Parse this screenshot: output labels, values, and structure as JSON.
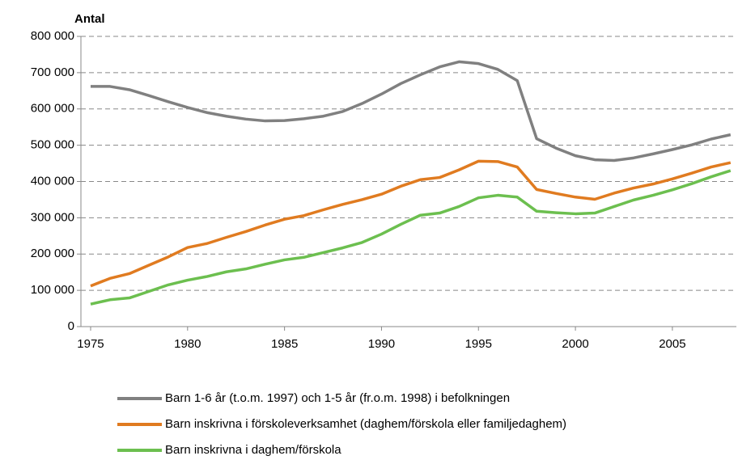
{
  "chart_data": {
    "type": "line",
    "y_label": "Antal",
    "x": [
      1975,
      1976,
      1977,
      1978,
      1979,
      1980,
      1981,
      1982,
      1983,
      1984,
      1985,
      1986,
      1987,
      1988,
      1989,
      1990,
      1991,
      1992,
      1993,
      1994,
      1995,
      1996,
      1997,
      1998,
      1999,
      2000,
      2001,
      2002,
      2003,
      2004,
      2005,
      2006,
      2007,
      2008
    ],
    "series": [
      {
        "name": "Barn 1-6 år (t.o.m. 1997) och 1-5 år (fr.o.m. 1998) i befolkningen",
        "color": "#808080",
        "values": [
          662000,
          662000,
          653000,
          637000,
          620000,
          604000,
          590000,
          580000,
          572000,
          567000,
          568000,
          573000,
          580000,
          593000,
          615000,
          641000,
          670000,
          694000,
          716000,
          730000,
          725000,
          709000,
          678000,
          518000,
          492000,
          471000,
          460000,
          458000,
          465000,
          476000,
          488000,
          501000,
          517000,
          529000
        ]
      },
      {
        "name": "Barn inskrivna i förskoleverksamhet (daghem/förskola eller familjedaghem)",
        "color": "#e07b20",
        "values": [
          112000,
          133000,
          146000,
          169000,
          192000,
          218000,
          229000,
          246000,
          262000,
          280000,
          296000,
          306000,
          322000,
          337000,
          350000,
          365000,
          387000,
          405000,
          411000,
          432000,
          456000,
          455000,
          440000,
          378000,
          367000,
          357000,
          351000,
          368000,
          382000,
          393000,
          407000,
          423000,
          440000,
          452000
        ]
      },
      {
        "name": "Barn inskrivna i daghem/förskola",
        "color": "#6cbf4f",
        "values": [
          62000,
          74000,
          79000,
          97000,
          115000,
          128000,
          138000,
          151000,
          159000,
          172000,
          184000,
          191000,
          204000,
          217000,
          232000,
          255000,
          282000,
          307000,
          313000,
          331000,
          355000,
          362000,
          357000,
          318000,
          314000,
          311000,
          313000,
          331000,
          349000,
          362000,
          377000,
          394000,
          413000,
          430000
        ]
      }
    ],
    "xlim": [
      1974.5,
      2008.3
    ],
    "xticks": [
      1975,
      1980,
      1985,
      1990,
      1995,
      2000,
      2005
    ],
    "ylim": [
      0,
      800000
    ],
    "yticks": [
      0,
      {
        "value": 100000,
        "label": "100 000"
      },
      {
        "value": 200000,
        "label": "200 000"
      },
      {
        "value": 300000,
        "label": "300 000"
      },
      {
        "value": 400000,
        "label": "400 000"
      },
      {
        "value": 500000,
        "label": "500 000"
      },
      {
        "value": 600000,
        "label": "600 000"
      },
      {
        "value": 700000,
        "label": "700 000"
      },
      {
        "value": 800000,
        "label": "800 000"
      }
    ],
    "grid": true
  }
}
